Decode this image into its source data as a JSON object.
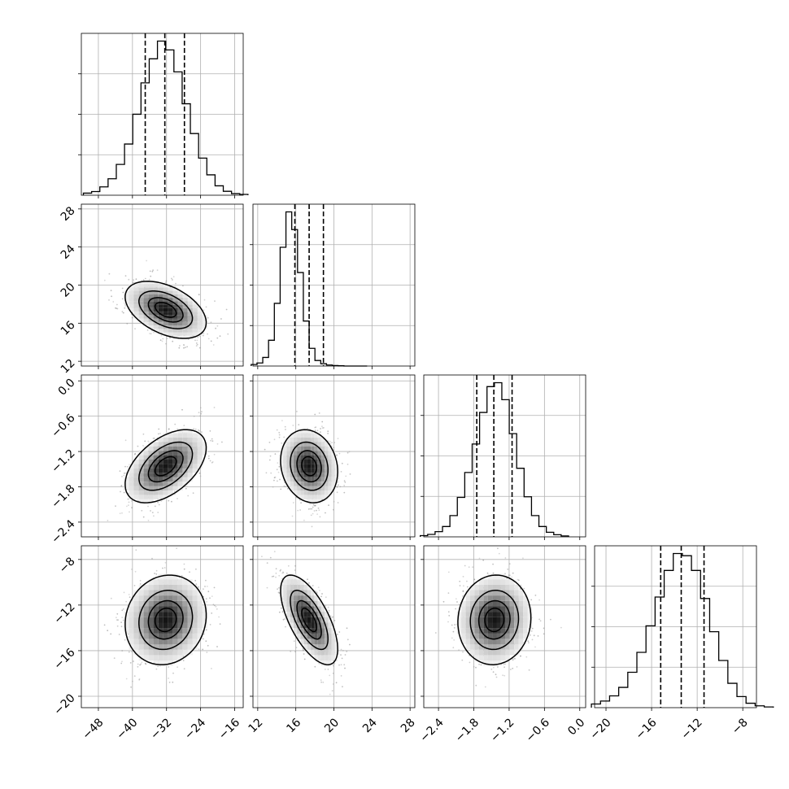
{
  "chart_data": {
    "type": "corner",
    "title": "",
    "parameters": [
      {
        "name": "",
        "range": [
          -52,
          -14
        ],
        "ticks": [
          -48,
          -40,
          -32,
          -24,
          -16
        ],
        "tick_labels": [
          "−48",
          "−40",
          "−32",
          "−24",
          "−16"
        ],
        "mean": -32.2,
        "std": 4.6,
        "quantiles": [
          -37.0,
          -32.4,
          -27.8
        ]
      },
      {
        "name": "",
        "range": [
          11.5,
          28.5
        ],
        "ticks": [
          12,
          16,
          20,
          24,
          28
        ],
        "tick_labels": [
          "12",
          "16",
          "20",
          "24",
          "28"
        ],
        "mean": 17.4,
        "std": 1.45,
        "quantiles": [
          15.9,
          17.4,
          18.9
        ]
      },
      {
        "name": "",
        "range": [
          -2.65,
          0.1
        ],
        "ticks": [
          -2.4,
          -1.8,
          -1.2,
          -0.6,
          0.0
        ],
        "tick_labels": [
          "−2.4",
          "−1.8",
          "−1.2",
          "−0.6",
          "0.0"
        ],
        "mean": -1.45,
        "std": 0.3,
        "quantiles": [
          -1.75,
          -1.46,
          -1.15
        ]
      },
      {
        "name": "",
        "range": [
          -21.0,
          -6.8
        ],
        "ticks": [
          -20,
          -16,
          -12,
          -8
        ],
        "tick_labels": [
          "−20",
          "−16",
          "−12",
          "−8"
        ],
        "mean": -13.3,
        "std": 1.9,
        "quantiles": [
          -15.2,
          -13.4,
          -11.4
        ]
      }
    ],
    "correlations": [
      {
        "row": 1,
        "col": 0,
        "rho": -0.45
      },
      {
        "row": 2,
        "col": 0,
        "rho": 0.5
      },
      {
        "row": 2,
        "col": 1,
        "rho": -0.15
      },
      {
        "row": 3,
        "col": 0,
        "rho": 0.1
      },
      {
        "row": 3,
        "col": 1,
        "rho": -0.65
      },
      {
        "row": 3,
        "col": 2,
        "rho": 0.05
      }
    ],
    "histograms": [
      {
        "param": 0,
        "bins": 20,
        "counts": [
          8,
          14,
          32,
          63,
          118,
          196,
          310,
          430,
          522,
          590,
          556,
          472,
          350,
          236,
          142,
          78,
          36,
          15,
          6,
          3
        ]
      },
      {
        "param": 1,
        "bins": 20,
        "counts": [
          6,
          12,
          34,
          102,
          248,
          470,
          610,
          540,
          370,
          178,
          70,
          22,
          9,
          4,
          2,
          1,
          0,
          0,
          0,
          0
        ]
      },
      {
        "param": 2,
        "bins": 20,
        "counts": [
          4,
          8,
          17,
          34,
          70,
          130,
          212,
          306,
          410,
          495,
          508,
          452,
          340,
          226,
          132,
          70,
          34,
          15,
          7,
          3
        ]
      },
      {
        "param": 3,
        "bins": 20,
        "counts": [
          10,
          18,
          32,
          55,
          96,
          150,
          222,
          300,
          372,
          418,
          412,
          372,
          296,
          206,
          128,
          66,
          30,
          12,
          5,
          2
        ]
      }
    ],
    "contour_levels_sigma": [
      0.5,
      1.0,
      1.5,
      2.0
    ],
    "grid": true,
    "quantile_lines": "dashed"
  }
}
